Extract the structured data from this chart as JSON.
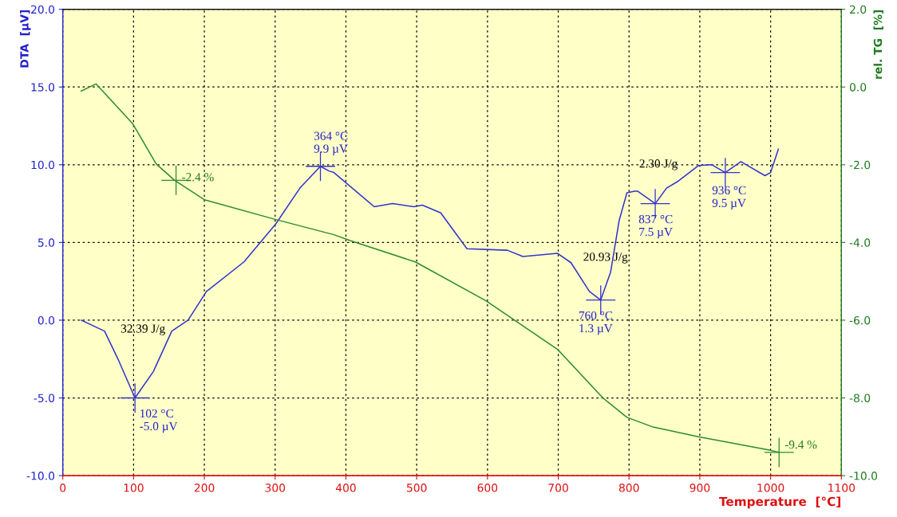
{
  "chart_data": {
    "type": "line",
    "xlabel": "Temperature  [°C]",
    "ylabel": "DTA  [µV]",
    "y2label": "rel. TG  [%]",
    "xlim": [
      0,
      1100
    ],
    "xticks": [
      0,
      100,
      200,
      300,
      400,
      500,
      600,
      700,
      800,
      900,
      1000,
      1100
    ],
    "ylim": [
      -10,
      20
    ],
    "yticks": [
      {
        "value": -10,
        "label": "-10.0"
      },
      {
        "value": -5,
        "label": "-5.0"
      },
      {
        "value": 0,
        "label": "0.0"
      },
      {
        "value": 5,
        "label": "5.0"
      },
      {
        "value": 10,
        "label": "10.0"
      },
      {
        "value": 15,
        "label": "15.0"
      },
      {
        "value": 20,
        "label": "20.0"
      }
    ],
    "y2lim": [
      -10,
      2
    ],
    "y2ticks": [
      {
        "value": -10,
        "label": "-10.0"
      },
      {
        "value": -8,
        "label": "-8.0"
      },
      {
        "value": -6,
        "label": "-6.0"
      },
      {
        "value": -4,
        "label": "-4.0"
      },
      {
        "value": -2,
        "label": "-2.0"
      },
      {
        "value": 0,
        "label": "0.0"
      },
      {
        "value": 2,
        "label": "2.0"
      }
    ],
    "grid": true,
    "line_style": "solid",
    "series": [
      {
        "color": "#3333cc",
        "x": [
          26,
          59,
          79,
          102,
          128,
          154,
          177,
          203,
          256,
          301,
          335,
          364,
          376,
          383,
          440,
          466,
          496,
          508,
          534,
          571,
          628,
          650,
          699,
          718,
          744,
          760,
          774,
          786,
          797,
          808,
          812,
          837,
          853,
          868,
          898,
          917,
          936,
          958,
          992,
          1000,
          1011
        ],
        "values": [
          0.0,
          -0.7,
          -2.6,
          -5.0,
          -3.3,
          -0.7,
          0.0,
          1.85,
          3.75,
          6.2,
          8.5,
          9.9,
          9.6,
          9.5,
          7.3,
          7.5,
          7.3,
          7.4,
          6.9,
          4.6,
          4.5,
          4.1,
          4.3,
          3.7,
          1.85,
          1.3,
          3.1,
          6.4,
          8.2,
          8.3,
          8.3,
          7.5,
          8.5,
          8.9,
          9.95,
          10.0,
          9.5,
          10.2,
          9.3,
          9.5,
          11.0
        ]
      },
      {
        "color": "#2e8b2e",
        "axis": "y2",
        "x": [
          26,
          47,
          99,
          132,
          158,
          200,
          299,
          383,
          406,
          498,
          598,
          699,
          763,
          797,
          834,
          898,
          1000,
          1012
        ],
        "values": [
          -0.1,
          0.08,
          -0.95,
          -1.98,
          -2.4,
          -2.9,
          -3.4,
          -3.8,
          -3.95,
          -4.5,
          -5.5,
          -6.75,
          -8.0,
          -8.5,
          -8.75,
          -9.0,
          -9.35,
          -9.4
        ]
      },
      {
        "type": "scatter",
        "color": "#3333cc",
        "marker": "cross",
        "x": [
          102,
          364,
          760,
          837,
          936
        ],
        "values": [
          -5.0,
          9.9,
          1.3,
          7.5,
          9.5
        ]
      },
      {
        "type": "scatter",
        "color": "#2e8b2e",
        "marker": "cross",
        "axis": "y2",
        "x": [
          160,
          1012
        ],
        "values": [
          -2.4,
          -9.4
        ]
      }
    ],
    "annotations": [
      {
        "text": "102 °C\n-5.0 µV",
        "x": 102,
        "y": -5.0
      },
      {
        "text": "364 °C\n9.9 µV",
        "x": 364,
        "y": 9.9
      },
      {
        "text": "760 °C\n1.3 µV",
        "x": 760,
        "y": 1.3
      },
      {
        "text": "837 °C\n7.5 µV",
        "x": 837,
        "y": 7.5
      },
      {
        "text": "936 °C\n9.5 µV",
        "x": 936,
        "y": 9.5
      },
      {
        "text": "-2.4 %",
        "x": 160,
        "y": 9.0
      },
      {
        "text": "-9.4 %",
        "x": 1012,
        "y": -8.5
      },
      "32.39 J/g",
      "20.93 J/g",
      "2.30 J/g"
    ]
  }
}
